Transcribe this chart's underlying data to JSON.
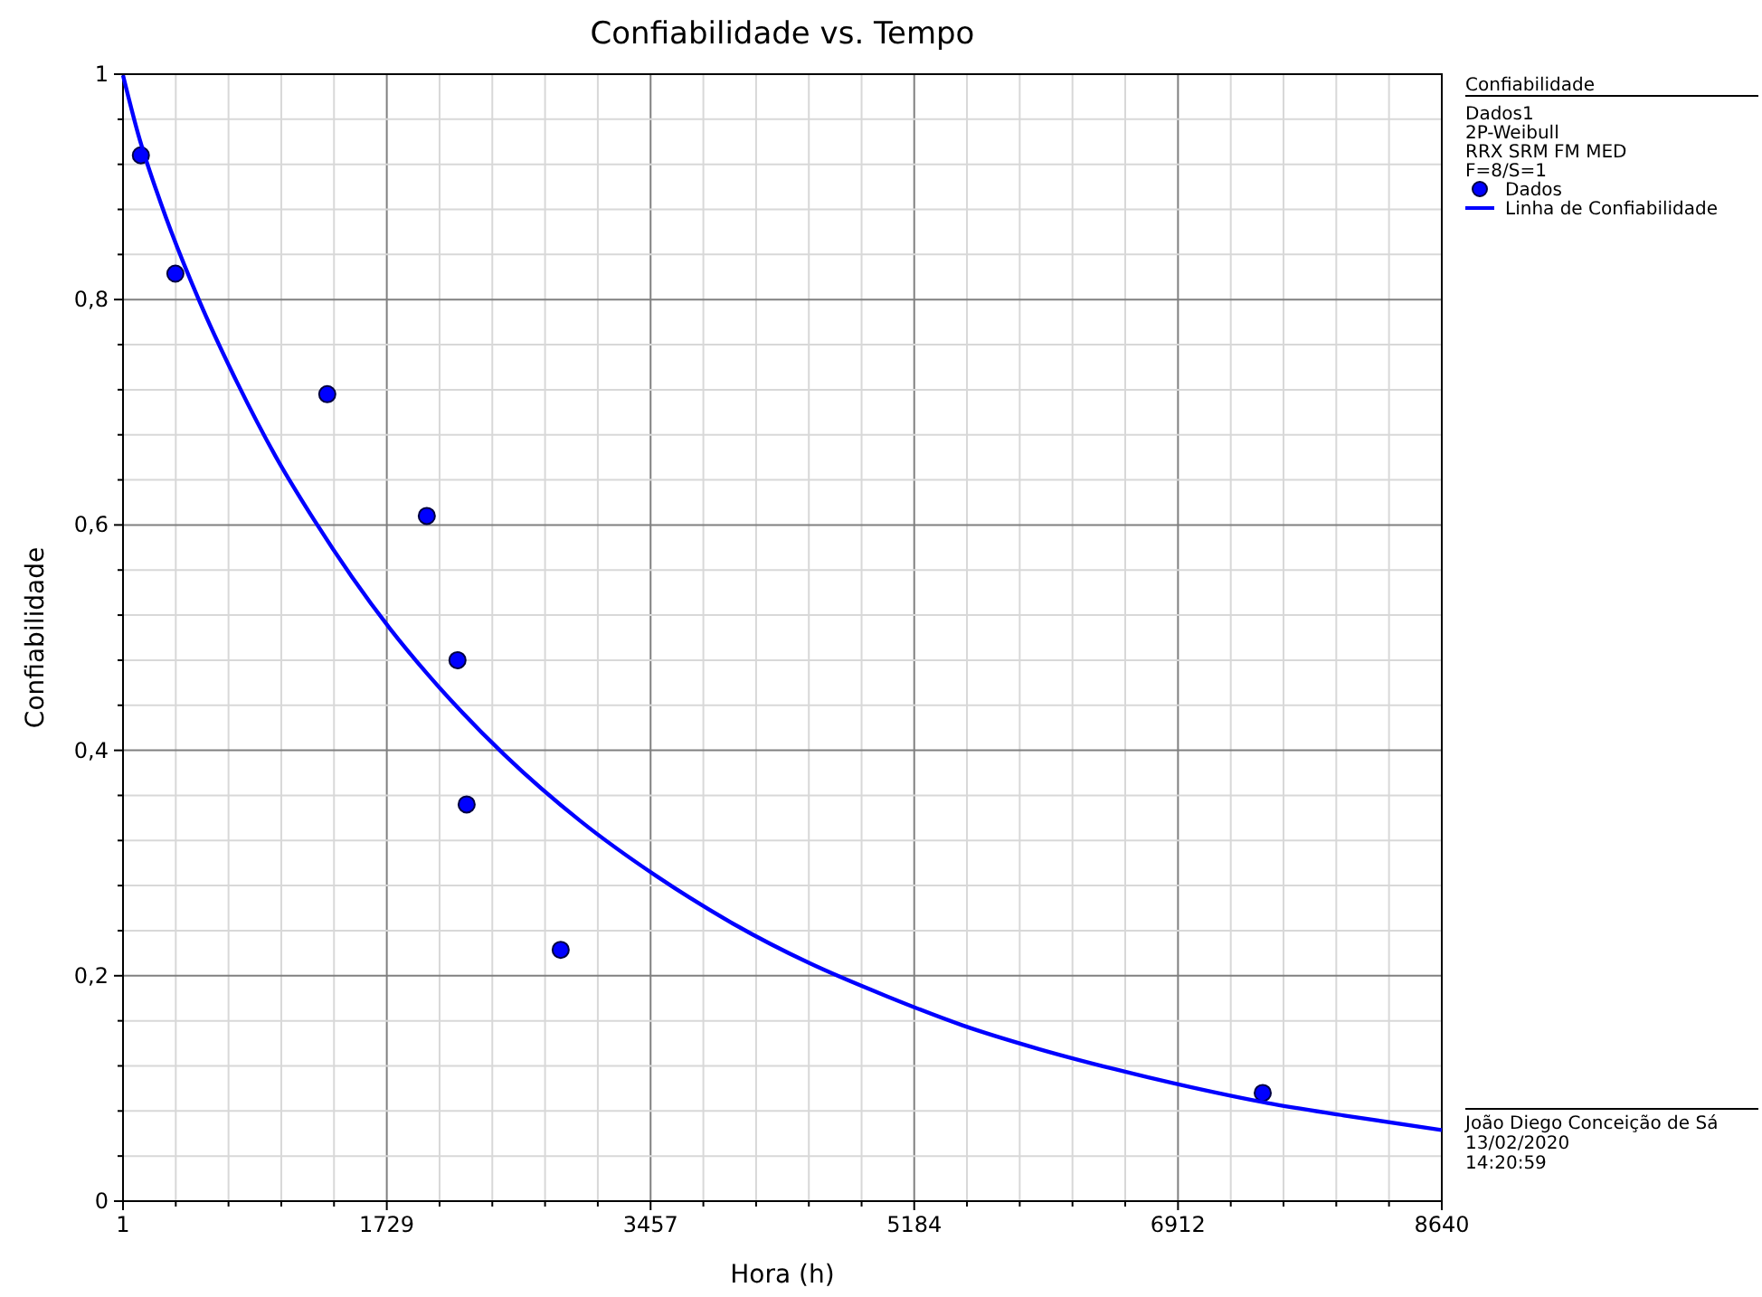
{
  "chart_data": {
    "type": "scatter",
    "title": "Confiabilidade vs. Tempo",
    "xlabel": "Hora (h)",
    "ylabel": "Confiabilidade",
    "legend_title": "Confiabilidade",
    "annotations": [
      "Dados1",
      "2P-Weibull",
      "RRX SRM FM MED",
      "F=8/S=1",
      "João Diego Conceição de Sá",
      "13/02/2020",
      "14:20:59"
    ],
    "xlim": [
      1,
      8640
    ],
    "ylim": [
      0,
      1
    ],
    "xticks": [
      1,
      {
        "value": 346.6,
        "label": null
      },
      {
        "value": 692.1,
        "label": null
      },
      {
        "value": 1037.7,
        "label": null
      },
      {
        "value": 1383.2,
        "label": null
      },
      1729,
      {
        "value": 2074.6,
        "label": null
      },
      {
        "value": 2420.1,
        "label": null
      },
      {
        "value": 2765.7,
        "label": null
      },
      {
        "value": 3111.2,
        "label": null
      },
      3457,
      {
        "value": 3802.6,
        "label": null
      },
      {
        "value": 4148.1,
        "label": null
      },
      {
        "value": 4493.7,
        "label": null
      },
      {
        "value": 4839.2,
        "label": null
      },
      5184,
      {
        "value": 5529.6,
        "label": null
      },
      {
        "value": 5875.1,
        "label": null
      },
      {
        "value": 6220.7,
        "label": null
      },
      {
        "value": 6566.2,
        "label": null
      },
      6912,
      {
        "value": 7257.6,
        "label": null
      },
      {
        "value": 7603.1,
        "label": null
      },
      {
        "value": 7948.7,
        "label": null
      },
      {
        "value": 8294.2,
        "label": null
      },
      8640
    ],
    "yticks": [
      0,
      {
        "value": 0.04,
        "label": null
      },
      {
        "value": 0.08,
        "label": null
      },
      {
        "value": 0.12,
        "label": null
      },
      {
        "value": 0.16,
        "label": null
      },
      {
        "value": 0.2,
        "label": "0,2"
      },
      {
        "value": 0.24,
        "label": null
      },
      {
        "value": 0.28,
        "label": null
      },
      {
        "value": 0.32,
        "label": null
      },
      {
        "value": 0.36,
        "label": null
      },
      {
        "value": 0.4,
        "label": "0,4"
      },
      {
        "value": 0.44,
        "label": null
      },
      {
        "value": 0.48,
        "label": null
      },
      {
        "value": 0.52,
        "label": null
      },
      {
        "value": 0.56,
        "label": null
      },
      {
        "value": 0.6,
        "label": "0,6"
      },
      {
        "value": 0.64,
        "label": null
      },
      {
        "value": 0.68,
        "label": null
      },
      {
        "value": 0.72,
        "label": null
      },
      {
        "value": 0.76,
        "label": null
      },
      {
        "value": 0.8,
        "label": "0,8"
      },
      {
        "value": 0.84,
        "label": null
      },
      {
        "value": 0.88,
        "label": null
      },
      {
        "value": 0.92,
        "label": null
      },
      {
        "value": 0.96,
        "label": null
      },
      1
    ],
    "grid": true,
    "legend": "right",
    "series": [
      {
        "name": "Dados",
        "marker": "circle",
        "color": "#0000ff",
        "x": [
          118,
          344,
          1339,
          1991,
          2192,
          2252,
          2868,
          7467
        ],
        "values": [
          0.928,
          0.823,
          0.716,
          0.608,
          0.48,
          0.352,
          0.223,
          0.096
        ]
      },
      {
        "name": "Linha de Confiabilidade",
        "type": "line",
        "color": "#0000ff",
        "marker": "none",
        "line_style": "solid",
        "x": [
          1,
          100,
          250,
          500,
          750,
          1000,
          1250,
          1500,
          1750,
          2000,
          2500,
          3000,
          3500,
          4000,
          4500,
          5000,
          5500,
          6000,
          6500,
          7000,
          7500,
          8000,
          8640
        ],
        "values": [
          0.999,
          0.947,
          0.885,
          0.799,
          0.726,
          0.661,
          0.605,
          0.554,
          0.508,
          0.467,
          0.396,
          0.337,
          0.288,
          0.246,
          0.211,
          0.182,
          0.156,
          0.135,
          0.117,
          0.101,
          0.087,
          0.076,
          0.063
        ]
      }
    ]
  }
}
